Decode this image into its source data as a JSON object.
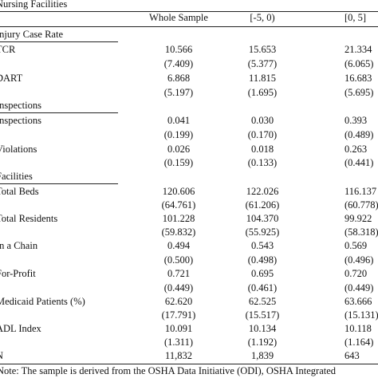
{
  "title": "Nursing Facilities",
  "columns": [
    "Whole Sample",
    "[-5, 0)",
    "[0, 5]"
  ],
  "sections": [
    {
      "heading": "Injury Case Rate",
      "rows": [
        {
          "label": "TCR",
          "v": [
            "10.566",
            "15.653",
            "21.334"
          ],
          "se": [
            "(7.409)",
            "(5.377)",
            "(6.065)"
          ]
        },
        {
          "label": "DART",
          "v": [
            "6.868",
            "11.815",
            "16.683"
          ],
          "se": [
            "(5.197)",
            "(1.695)",
            "(5.695)"
          ]
        }
      ]
    },
    {
      "heading": "Inspections",
      "rows": [
        {
          "label": "Inspections",
          "v": [
            "0.041",
            "0.030",
            "0.393"
          ],
          "se": [
            "(0.199)",
            "(0.170)",
            "(0.489)"
          ]
        },
        {
          "label": "Violations",
          "v": [
            "0.026",
            "0.018",
            "0.263"
          ],
          "se": [
            "(0.159)",
            "(0.133)",
            "(0.441)"
          ]
        }
      ]
    },
    {
      "heading": "Facilities",
      "rows": [
        {
          "label": "Total Beds",
          "v": [
            "120.606",
            "122.026",
            "116.137"
          ],
          "se": [
            "(64.761)",
            "(61.206)",
            "(60.778)"
          ]
        },
        {
          "label": "Total Residents",
          "v": [
            "101.228",
            "104.370",
            "99.922"
          ],
          "se": [
            "(59.832)",
            "(55.925)",
            "(58.318)"
          ]
        },
        {
          "label": "In a Chain",
          "v": [
            "0.494",
            "0.543",
            "0.569"
          ],
          "se": [
            "(0.500)",
            "(0.498)",
            "(0.496)"
          ]
        },
        {
          "label": "For-Profit",
          "v": [
            "0.721",
            "0.695",
            "0.720"
          ],
          "se": [
            "(0.449)",
            "(0.461)",
            "(0.449)"
          ]
        },
        {
          "label": "Medicaid Patients (%)",
          "v": [
            "62.620",
            "62.525",
            "63.666"
          ],
          "se": [
            "(17.791)",
            "(15.517)",
            "(15.131)"
          ]
        },
        {
          "label": "ADL Index",
          "v": [
            "10.091",
            "10.134",
            "10.118"
          ],
          "se": [
            "(1.311)",
            "(1.192)",
            "(1.164)"
          ]
        }
      ]
    }
  ],
  "n_row": {
    "label": "N",
    "v": [
      "11,832",
      "1,839",
      "643"
    ]
  },
  "note": "Note: The sample is derived from the OSHA Data Initiative (ODI), OSHA Integrated"
}
